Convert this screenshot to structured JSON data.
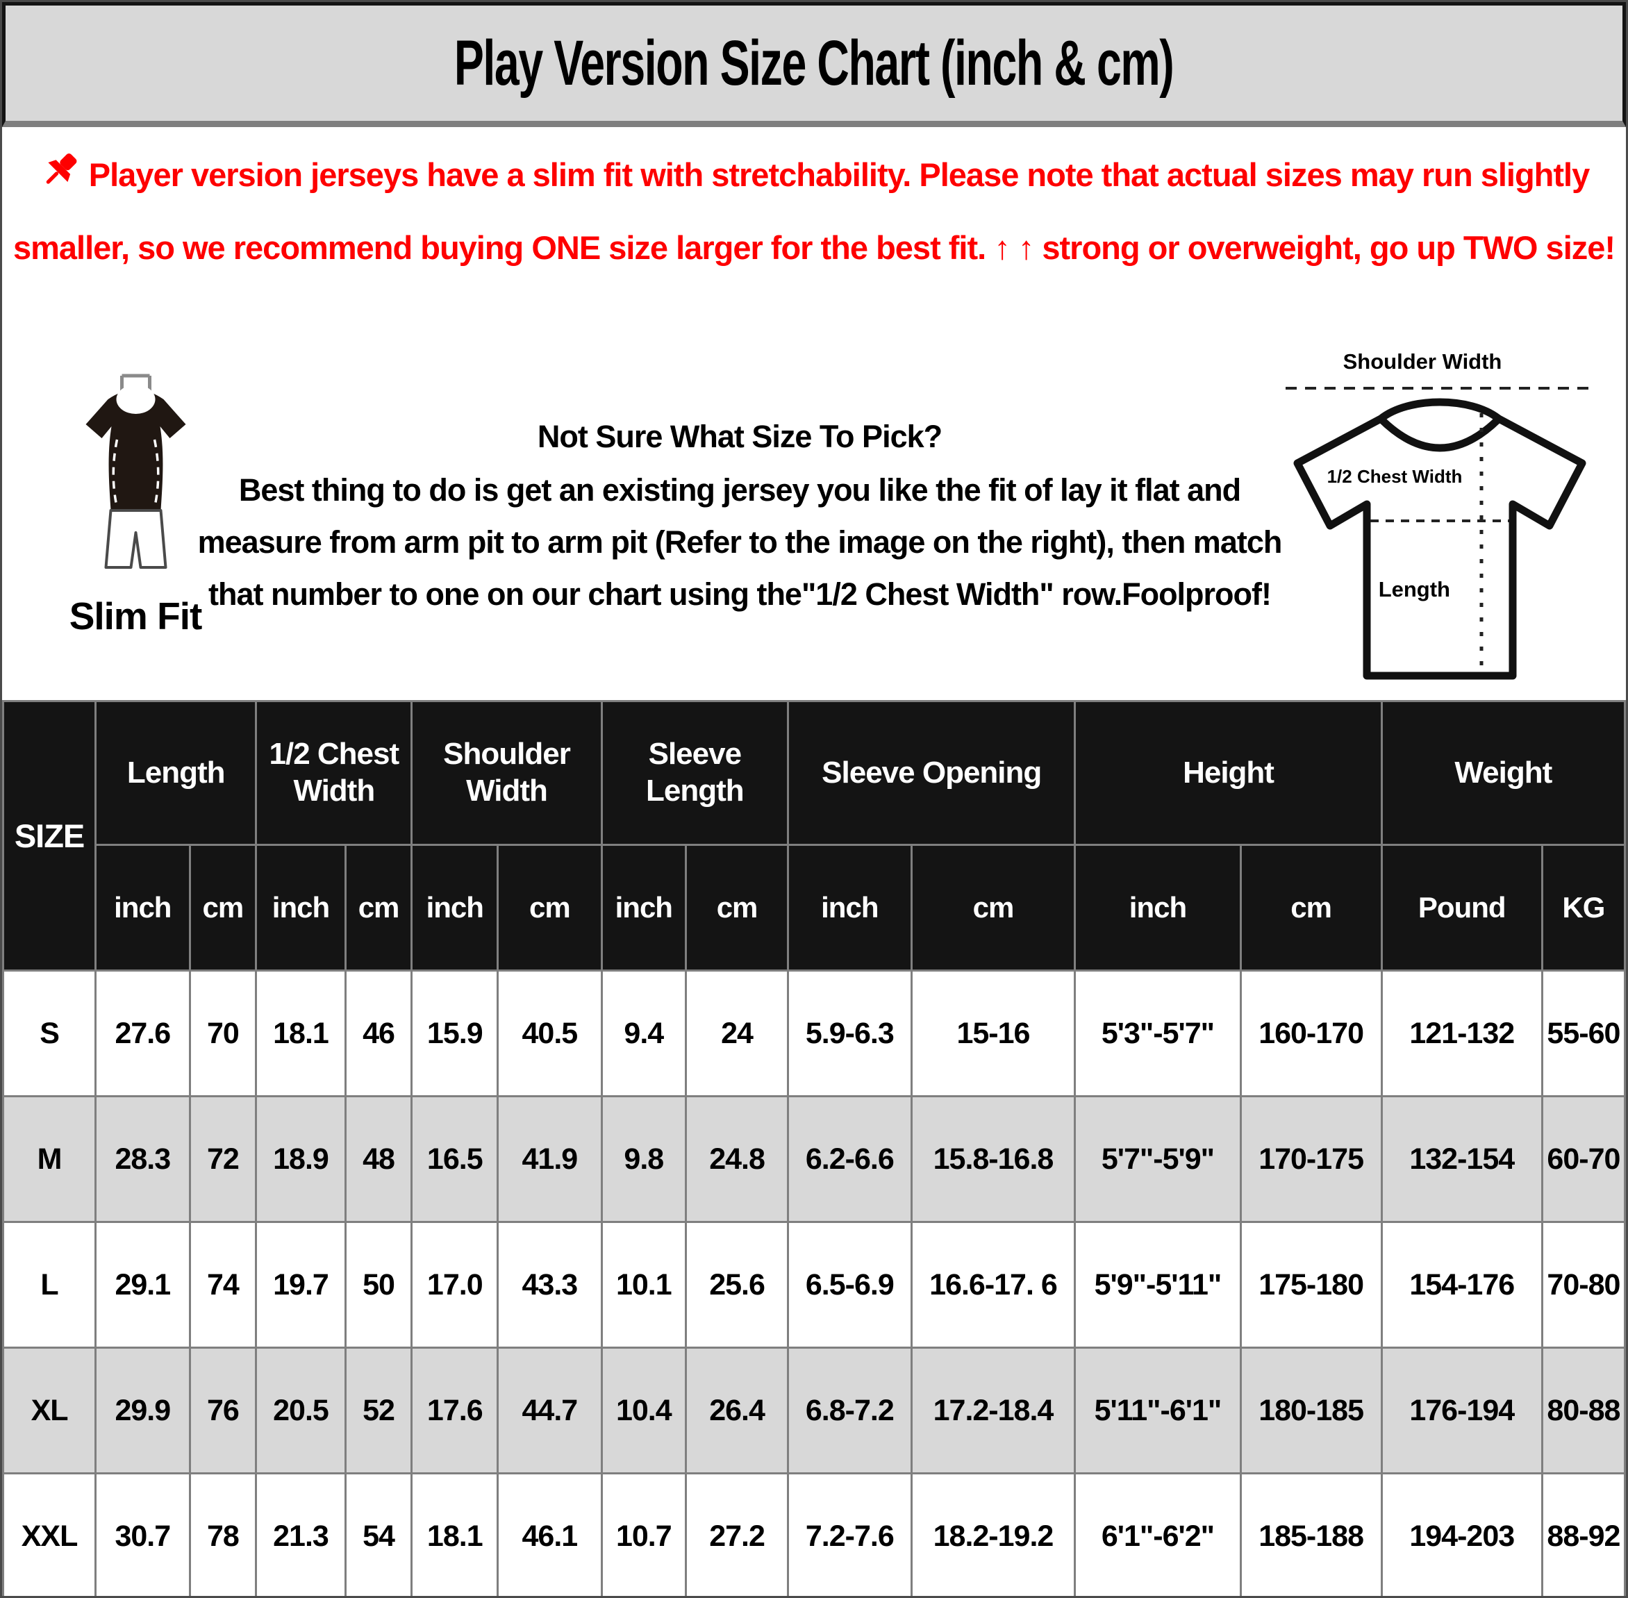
{
  "header": {
    "title": "Play Version Size Chart (inch & cm)"
  },
  "note": {
    "text": "Player version jerseys have a slim fit with stretchability. Please note that actual sizes may run slightly smaller, so we recommend buying ONE size larger for the best fit. ↑ ↑ strong or overweight, go up TWO size!"
  },
  "guide": {
    "slim_fit_label": "Slim Fit",
    "heading": "Not Sure What Size To Pick?",
    "body": "Best thing to do is get an existing jersey you like the fit of lay it flat and measure from arm pit to arm pit (Refer to the image on the right), then match that number to one on our chart using the\"1/2 Chest Width\" row.Foolproof!",
    "diagram": {
      "shoulder_label": "Shoulder Width",
      "chest_label": "1/2 Chest Width",
      "length_label": "Length"
    }
  },
  "table": {
    "size_header": "SIZE",
    "groups": [
      {
        "label": "Length",
        "unit1": "inch",
        "unit2": "cm"
      },
      {
        "label": "1/2 Chest Width",
        "unit1": "inch",
        "unit2": "cm"
      },
      {
        "label": "Shoulder Width",
        "unit1": "inch",
        "unit2": "cm"
      },
      {
        "label": "Sleeve Length",
        "unit1": "inch",
        "unit2": "cm"
      },
      {
        "label": "Sleeve Opening",
        "unit1": "inch",
        "unit2": "cm"
      },
      {
        "label": "Height",
        "unit1": "inch",
        "unit2": "cm"
      },
      {
        "label": "Weight",
        "unit1": "Pound",
        "unit2": "KG"
      }
    ],
    "rows": [
      {
        "size": "S",
        "values": [
          "27.6",
          "70",
          "18.1",
          "46",
          "15.9",
          "40.5",
          "9.4",
          "24",
          "5.9-6.3",
          "15-16",
          "5'3\"-5'7\"",
          "160-170",
          "121-132",
          "55-60"
        ]
      },
      {
        "size": "M",
        "values": [
          "28.3",
          "72",
          "18.9",
          "48",
          "16.5",
          "41.9",
          "9.8",
          "24.8",
          "6.2-6.6",
          "15.8-16.8",
          "5'7\"-5'9\"",
          "170-175",
          "132-154",
          "60-70"
        ]
      },
      {
        "size": "L",
        "values": [
          "29.1",
          "74",
          "19.7",
          "50",
          "17.0",
          "43.3",
          "10.1",
          "25.6",
          "6.5-6.9",
          "16.6-17. 6",
          "5'9\"-5'11\"",
          "175-180",
          "154-176",
          "70-80"
        ]
      },
      {
        "size": "XL",
        "values": [
          "29.9",
          "76",
          "20.5",
          "52",
          "17.6",
          "44.7",
          "10.4",
          "26.4",
          "6.8-7.2",
          "17.2-18.4",
          "5'11\"-6'1\"",
          "180-185",
          "176-194",
          "80-88"
        ]
      },
      {
        "size": "XXL",
        "values": [
          "30.7",
          "78",
          "21.3",
          "54",
          "18.1",
          "46.1",
          "10.7",
          "27.2",
          "7.2-7.6",
          "18.2-19.2",
          "6'1\"-6'2\"",
          "185-188",
          "194-203",
          "88-92"
        ]
      }
    ]
  },
  "colors": {
    "accent_red": "#fe0000",
    "title_bar_bg": "#d8d8d8",
    "table_header_bg": "#141414",
    "alt_row_bg": "#d8d8d8",
    "grid_line": "#7f7f7f"
  }
}
